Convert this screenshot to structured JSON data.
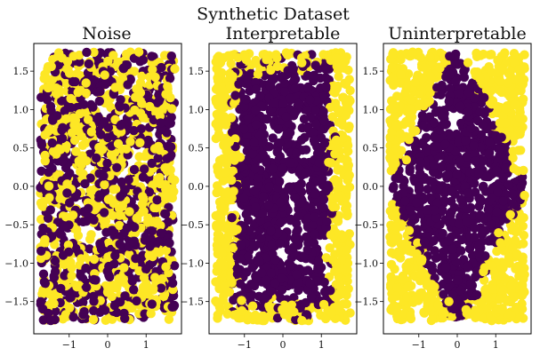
{
  "chart_data": {
    "suptitle": "Synthetic Dataset",
    "type": "scatter",
    "colors": {
      "class0": "#440154",
      "class1": "#fde725"
    },
    "panels": [
      {
        "title": "Noise",
        "rule": "random",
        "xlim": [
          -1.92,
          1.92
        ],
        "ylim": [
          -1.92,
          1.86
        ],
        "xticks": [
          -1,
          0,
          1
        ],
        "xtick_labels": [
          "−1",
          "0",
          "1"
        ],
        "yticks": [
          1.5,
          1.0,
          0.5,
          0.0,
          -0.5,
          -1.0,
          -1.5
        ],
        "ytick_labels": [
          "1.5",
          "1.0",
          "0.5",
          "0.0",
          "−0.5",
          "−1.0",
          "−1.5"
        ]
      },
      {
        "title": "Interpretable",
        "rule": "square",
        "threshold": 1.2,
        "xlim": [
          -1.92,
          1.92
        ],
        "ylim": [
          -1.92,
          1.86
        ],
        "xticks": [
          -1,
          0,
          1
        ],
        "xtick_labels": [
          "−1",
          "0",
          "1"
        ],
        "yticks": [
          1.5,
          1.0,
          0.5,
          0.0,
          -0.5,
          -1.0,
          -1.5
        ],
        "ytick_labels": [
          "1.5",
          "1.0",
          "0.5",
          "0.0",
          "−0.5",
          "−1.0",
          "−1.5"
        ]
      },
      {
        "title": "Uninterpretable",
        "rule": "diamond",
        "threshold": 1.75,
        "xlim": [
          -1.92,
          1.92
        ],
        "ylim": [
          -1.92,
          1.86
        ],
        "xticks": [
          -1,
          0,
          1
        ],
        "xtick_labels": [
          "−1",
          "0",
          "1"
        ],
        "yticks": [
          1.5,
          1.0,
          0.5,
          0.0,
          -0.5,
          -1.0,
          -1.5
        ],
        "ytick_labels": [
          "1.5",
          "1.0",
          "0.5",
          "0.0",
          "−0.5",
          "−1.0",
          "−1.5"
        ]
      }
    ],
    "data_range": [
      -1.75,
      1.75
    ]
  }
}
